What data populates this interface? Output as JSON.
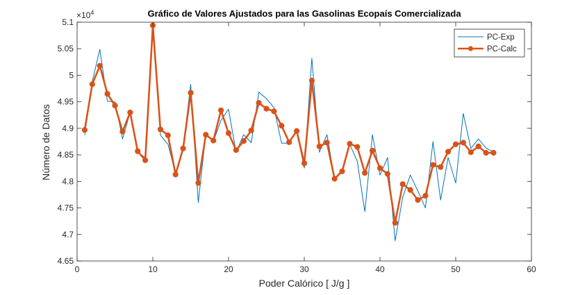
{
  "chart_data": {
    "type": "line",
    "title": "Gráfico de Valores Ajustados para las Gasolinas Ecopaís Comercializada",
    "xlabel": "Poder Calórico [ J/g ]",
    "ylabel": "Número de Datos",
    "y_exponent_label": "×10",
    "y_exponent_power": "4",
    "xlim": [
      0,
      60
    ],
    "ylim": [
      4.65,
      5.1
    ],
    "x_ticks": [
      0,
      10,
      20,
      30,
      40,
      50,
      60
    ],
    "x_tick_labels": [
      "0",
      "10",
      "20",
      "30",
      "40",
      "50",
      "60"
    ],
    "y_ticks": [
      4.65,
      4.7,
      4.75,
      4.8,
      4.85,
      4.9,
      4.95,
      5.0,
      5.05,
      5.1
    ],
    "y_tick_labels": [
      "4.65",
      "4.7",
      "4.75",
      "4.8",
      "4.85",
      "4.9",
      "4.95",
      "5",
      "5.05",
      "5.1"
    ],
    "grid": false,
    "legend_position": "top-right",
    "x": [
      1,
      2,
      3,
      4,
      5,
      6,
      7,
      8,
      9,
      10,
      11,
      12,
      13,
      14,
      15,
      16,
      17,
      18,
      19,
      20,
      21,
      22,
      23,
      24,
      25,
      26,
      27,
      28,
      29,
      30,
      31,
      32,
      33,
      34,
      35,
      36,
      37,
      38,
      39,
      40,
      41,
      42,
      43,
      44,
      45,
      46,
      47,
      48,
      49,
      50,
      51,
      52,
      53,
      54,
      55
    ],
    "series": [
      {
        "name": "PC-Exp",
        "color": "#0072BD",
        "style": "thin-line",
        "values": [
          4.887,
          4.988,
          5.049,
          4.951,
          4.95,
          4.88,
          4.93,
          4.855,
          4.845,
          5.095,
          4.887,
          4.87,
          4.815,
          4.862,
          4.983,
          4.76,
          4.89,
          4.875,
          4.915,
          4.936,
          4.855,
          4.888,
          4.873,
          4.968,
          4.956,
          4.939,
          4.872,
          4.872,
          4.895,
          4.825,
          5.032,
          4.855,
          4.888,
          4.805,
          4.822,
          4.87,
          4.838,
          4.743,
          4.888,
          4.812,
          4.845,
          4.688,
          4.77,
          4.812,
          4.782,
          4.75,
          4.875,
          4.765,
          4.845,
          4.797,
          4.928,
          4.862,
          4.88,
          4.863,
          4.855
        ]
      },
      {
        "name": "PC-Calc",
        "color": "#D95319",
        "style": "thick-line-markers",
        "values": [
          4.897,
          4.983,
          5.018,
          4.965,
          4.943,
          4.894,
          4.93,
          4.857,
          4.84,
          5.094,
          4.898,
          4.887,
          4.813,
          4.862,
          4.967,
          4.797,
          4.888,
          4.877,
          4.934,
          4.891,
          4.859,
          4.876,
          4.896,
          4.948,
          4.937,
          4.932,
          4.905,
          4.874,
          4.895,
          4.834,
          4.99,
          4.866,
          4.873,
          4.805,
          4.819,
          4.871,
          4.865,
          4.816,
          4.858,
          4.825,
          4.814,
          4.722,
          4.795,
          4.784,
          4.765,
          4.773,
          4.831,
          4.827,
          4.856,
          4.87,
          4.873,
          4.855,
          4.866,
          4.854,
          4.854
        ]
      }
    ]
  }
}
